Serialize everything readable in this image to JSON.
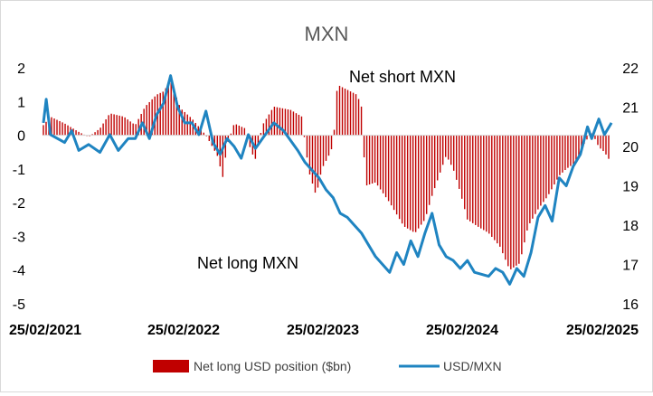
{
  "chart_data": {
    "type": "bar",
    "title": "MXN",
    "annotations": {
      "upper": "Net short MXN",
      "lower": "Net long MXN"
    },
    "x_ticks": [
      "25/02/2021",
      "25/02/2022",
      "25/02/2023",
      "25/02/2024",
      "25/02/2025"
    ],
    "y_left": {
      "ticks": [
        "2",
        "1",
        "0",
        "-1",
        "-2",
        "-3",
        "-4",
        "-5"
      ],
      "range": [
        -5,
        2
      ]
    },
    "y_right": {
      "ticks": [
        "22",
        "21",
        "20",
        "19",
        "18",
        "17",
        "16"
      ],
      "range": [
        16,
        22
      ]
    },
    "legend": {
      "bar_label": "Net long USD position ($bn)",
      "line_label": "USD/MXN",
      "placement": "bottom"
    },
    "colors": {
      "bars": "#c00000",
      "line": "#1f84c1",
      "text": "#404040"
    },
    "series": [
      {
        "name": "Net long USD position ($bn)",
        "type": "bar",
        "axis": "left",
        "keypoints": [
          [
            2021.15,
            0.3
          ],
          [
            2021.2,
            0.55
          ],
          [
            2021.3,
            0.35
          ],
          [
            2021.4,
            0.1
          ],
          [
            2021.47,
            -0.05
          ],
          [
            2021.55,
            0.2
          ],
          [
            2021.62,
            0.65
          ],
          [
            2021.72,
            0.55
          ],
          [
            2021.8,
            0.3
          ],
          [
            2021.87,
            0.85
          ],
          [
            2021.95,
            1.2
          ],
          [
            2022.0,
            1.3
          ],
          [
            2022.05,
            1.6
          ],
          [
            2022.12,
            0.8
          ],
          [
            2022.2,
            0.5
          ],
          [
            2022.3,
            0.0
          ],
          [
            2022.38,
            -0.6
          ],
          [
            2022.42,
            -1.25
          ],
          [
            2022.45,
            -0.3
          ],
          [
            2022.5,
            0.35
          ],
          [
            2022.58,
            0.2
          ],
          [
            2022.62,
            -0.5
          ],
          [
            2022.65,
            -0.7
          ],
          [
            2022.7,
            0.3
          ],
          [
            2022.78,
            0.85
          ],
          [
            2022.9,
            0.75
          ],
          [
            2022.98,
            0.55
          ],
          [
            2023.0,
            -0.2
          ],
          [
            2023.03,
            -1.1
          ],
          [
            2023.08,
            -1.8
          ],
          [
            2023.12,
            -1.0
          ],
          [
            2023.17,
            -0.6
          ],
          [
            2023.2,
            -0.3
          ],
          [
            2023.23,
            1.5
          ],
          [
            2023.3,
            1.35
          ],
          [
            2023.37,
            1.2
          ],
          [
            2023.4,
            0.85
          ],
          [
            2023.43,
            -1.5
          ],
          [
            2023.5,
            -1.4
          ],
          [
            2023.6,
            -2.0
          ],
          [
            2023.7,
            -2.7
          ],
          [
            2023.78,
            -2.9
          ],
          [
            2023.85,
            -2.5
          ],
          [
            2023.9,
            -1.8
          ],
          [
            2023.95,
            -1.2
          ],
          [
            2024.0,
            -0.6
          ],
          [
            2024.05,
            -1.0
          ],
          [
            2024.1,
            -1.7
          ],
          [
            2024.15,
            -2.5
          ],
          [
            2024.22,
            -2.7
          ],
          [
            2024.3,
            -2.9
          ],
          [
            2024.38,
            -3.3
          ],
          [
            2024.45,
            -4.0
          ],
          [
            2024.52,
            -3.8
          ],
          [
            2024.58,
            -2.7
          ],
          [
            2024.65,
            -2.2
          ],
          [
            2024.72,
            -1.8
          ],
          [
            2024.8,
            -1.2
          ],
          [
            2024.85,
            -1.0
          ],
          [
            2024.92,
            -0.8
          ],
          [
            2024.97,
            -0.3
          ],
          [
            2025.03,
            0.1
          ],
          [
            2025.08,
            -0.35
          ],
          [
            2025.12,
            -0.5
          ],
          [
            2025.15,
            -0.7
          ]
        ]
      },
      {
        "name": "USD/MXN",
        "type": "line",
        "axis": "right",
        "keypoints": [
          [
            2021.15,
            20.6
          ],
          [
            2021.17,
            21.2
          ],
          [
            2021.2,
            20.3
          ],
          [
            2021.3,
            20.1
          ],
          [
            2021.35,
            20.4
          ],
          [
            2021.4,
            19.9
          ],
          [
            2021.47,
            20.05
          ],
          [
            2021.55,
            19.85
          ],
          [
            2021.62,
            20.3
          ],
          [
            2021.68,
            19.9
          ],
          [
            2021.75,
            20.2
          ],
          [
            2021.8,
            20.2
          ],
          [
            2021.85,
            20.6
          ],
          [
            2021.9,
            20.2
          ],
          [
            2021.95,
            20.8
          ],
          [
            2022.0,
            21.1
          ],
          [
            2022.05,
            21.8
          ],
          [
            2022.1,
            21.0
          ],
          [
            2022.15,
            20.6
          ],
          [
            2022.2,
            20.6
          ],
          [
            2022.25,
            20.3
          ],
          [
            2022.3,
            20.9
          ],
          [
            2022.35,
            20.1
          ],
          [
            2022.4,
            19.8
          ],
          [
            2022.45,
            20.2
          ],
          [
            2022.5,
            20.0
          ],
          [
            2022.55,
            19.7
          ],
          [
            2022.6,
            20.3
          ],
          [
            2022.65,
            19.95
          ],
          [
            2022.7,
            20.2
          ],
          [
            2022.78,
            20.6
          ],
          [
            2022.85,
            20.4
          ],
          [
            2022.95,
            19.9
          ],
          [
            2023.0,
            19.6
          ],
          [
            2023.05,
            19.4
          ],
          [
            2023.1,
            19.2
          ],
          [
            2023.15,
            18.9
          ],
          [
            2023.2,
            18.7
          ],
          [
            2023.25,
            18.3
          ],
          [
            2023.3,
            18.2
          ],
          [
            2023.35,
            18.0
          ],
          [
            2023.4,
            17.8
          ],
          [
            2023.45,
            17.5
          ],
          [
            2023.5,
            17.2
          ],
          [
            2023.55,
            17.0
          ],
          [
            2023.6,
            16.8
          ],
          [
            2023.65,
            17.3
          ],
          [
            2023.7,
            17.0
          ],
          [
            2023.75,
            17.6
          ],
          [
            2023.8,
            17.2
          ],
          [
            2023.85,
            17.8
          ],
          [
            2023.9,
            18.3
          ],
          [
            2023.95,
            17.5
          ],
          [
            2024.0,
            17.2
          ],
          [
            2024.05,
            17.1
          ],
          [
            2024.1,
            16.9
          ],
          [
            2024.15,
            17.1
          ],
          [
            2024.2,
            16.8
          ],
          [
            2024.3,
            16.7
          ],
          [
            2024.35,
            16.9
          ],
          [
            2024.4,
            16.8
          ],
          [
            2024.45,
            16.5
          ],
          [
            2024.5,
            16.9
          ],
          [
            2024.55,
            16.7
          ],
          [
            2024.6,
            17.3
          ],
          [
            2024.65,
            18.2
          ],
          [
            2024.7,
            18.5
          ],
          [
            2024.75,
            18.1
          ],
          [
            2024.8,
            19.2
          ],
          [
            2024.85,
            19.0
          ],
          [
            2024.9,
            19.5
          ],
          [
            2024.95,
            19.8
          ],
          [
            2025.0,
            20.5
          ],
          [
            2025.03,
            20.2
          ],
          [
            2025.08,
            20.7
          ],
          [
            2025.12,
            20.3
          ],
          [
            2025.17,
            20.6
          ]
        ]
      }
    ]
  }
}
